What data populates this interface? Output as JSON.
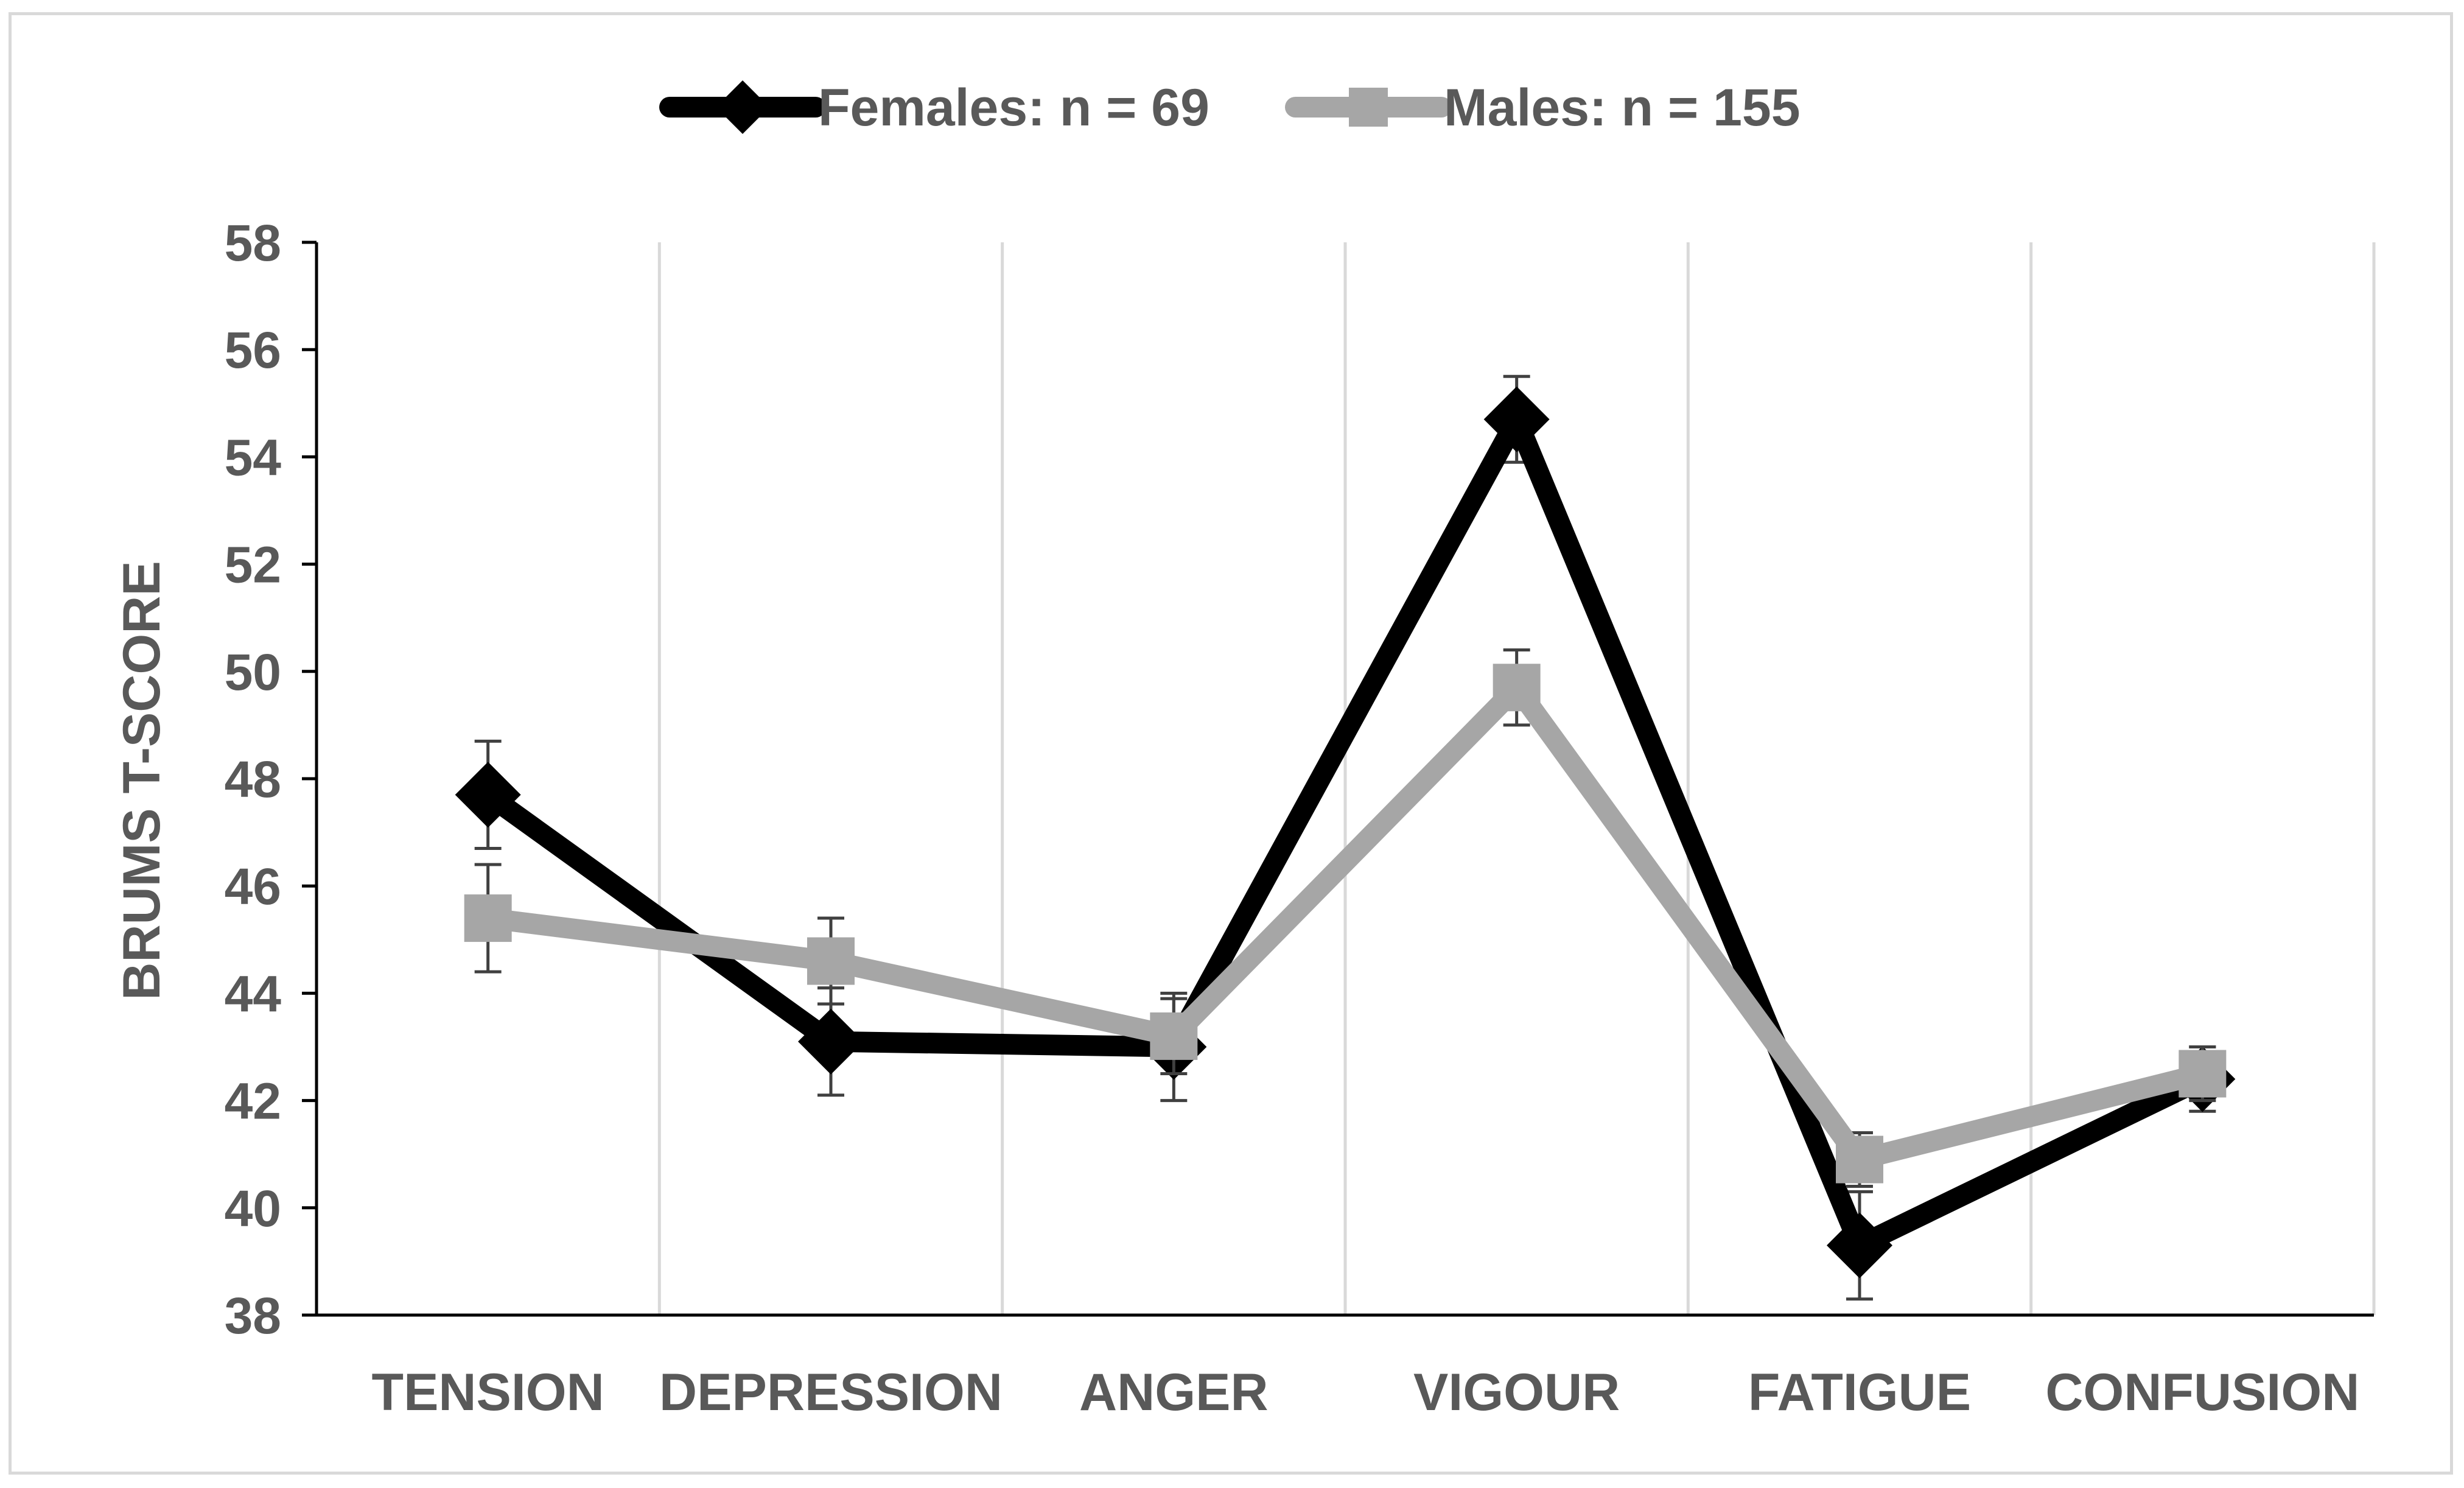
{
  "chart_data": {
    "type": "line",
    "title": "",
    "xlabel": "",
    "ylabel": "BRUMS T-SCORE",
    "categories": [
      "TENSION",
      "DEPRESSION",
      "ANGER",
      "VIGOUR",
      "FATIGUE",
      "CONFUSION"
    ],
    "ylim": [
      38,
      58
    ],
    "yticks": [
      "38",
      "40",
      "42",
      "44",
      "46",
      "48",
      "50",
      "52",
      "54",
      "56",
      "58"
    ],
    "grid": "vertical gridlines between categories",
    "legend_position": "top",
    "series": [
      {
        "name": "Females: n = 69",
        "color": "#000000",
        "marker": "diamond",
        "values": [
          47.7,
          43.1,
          43.0,
          54.7,
          39.3,
          42.4
        ],
        "error": [
          1.0,
          1.0,
          1.0,
          0.8,
          1.0,
          0.6
        ]
      },
      {
        "name": "Males: n = 155",
        "color": "#a6a6a6",
        "marker": "square",
        "values": [
          45.4,
          44.6,
          43.2,
          49.7,
          40.9,
          42.5
        ],
        "error": [
          1.0,
          0.8,
          0.7,
          0.7,
          0.5,
          0.5
        ]
      }
    ]
  }
}
